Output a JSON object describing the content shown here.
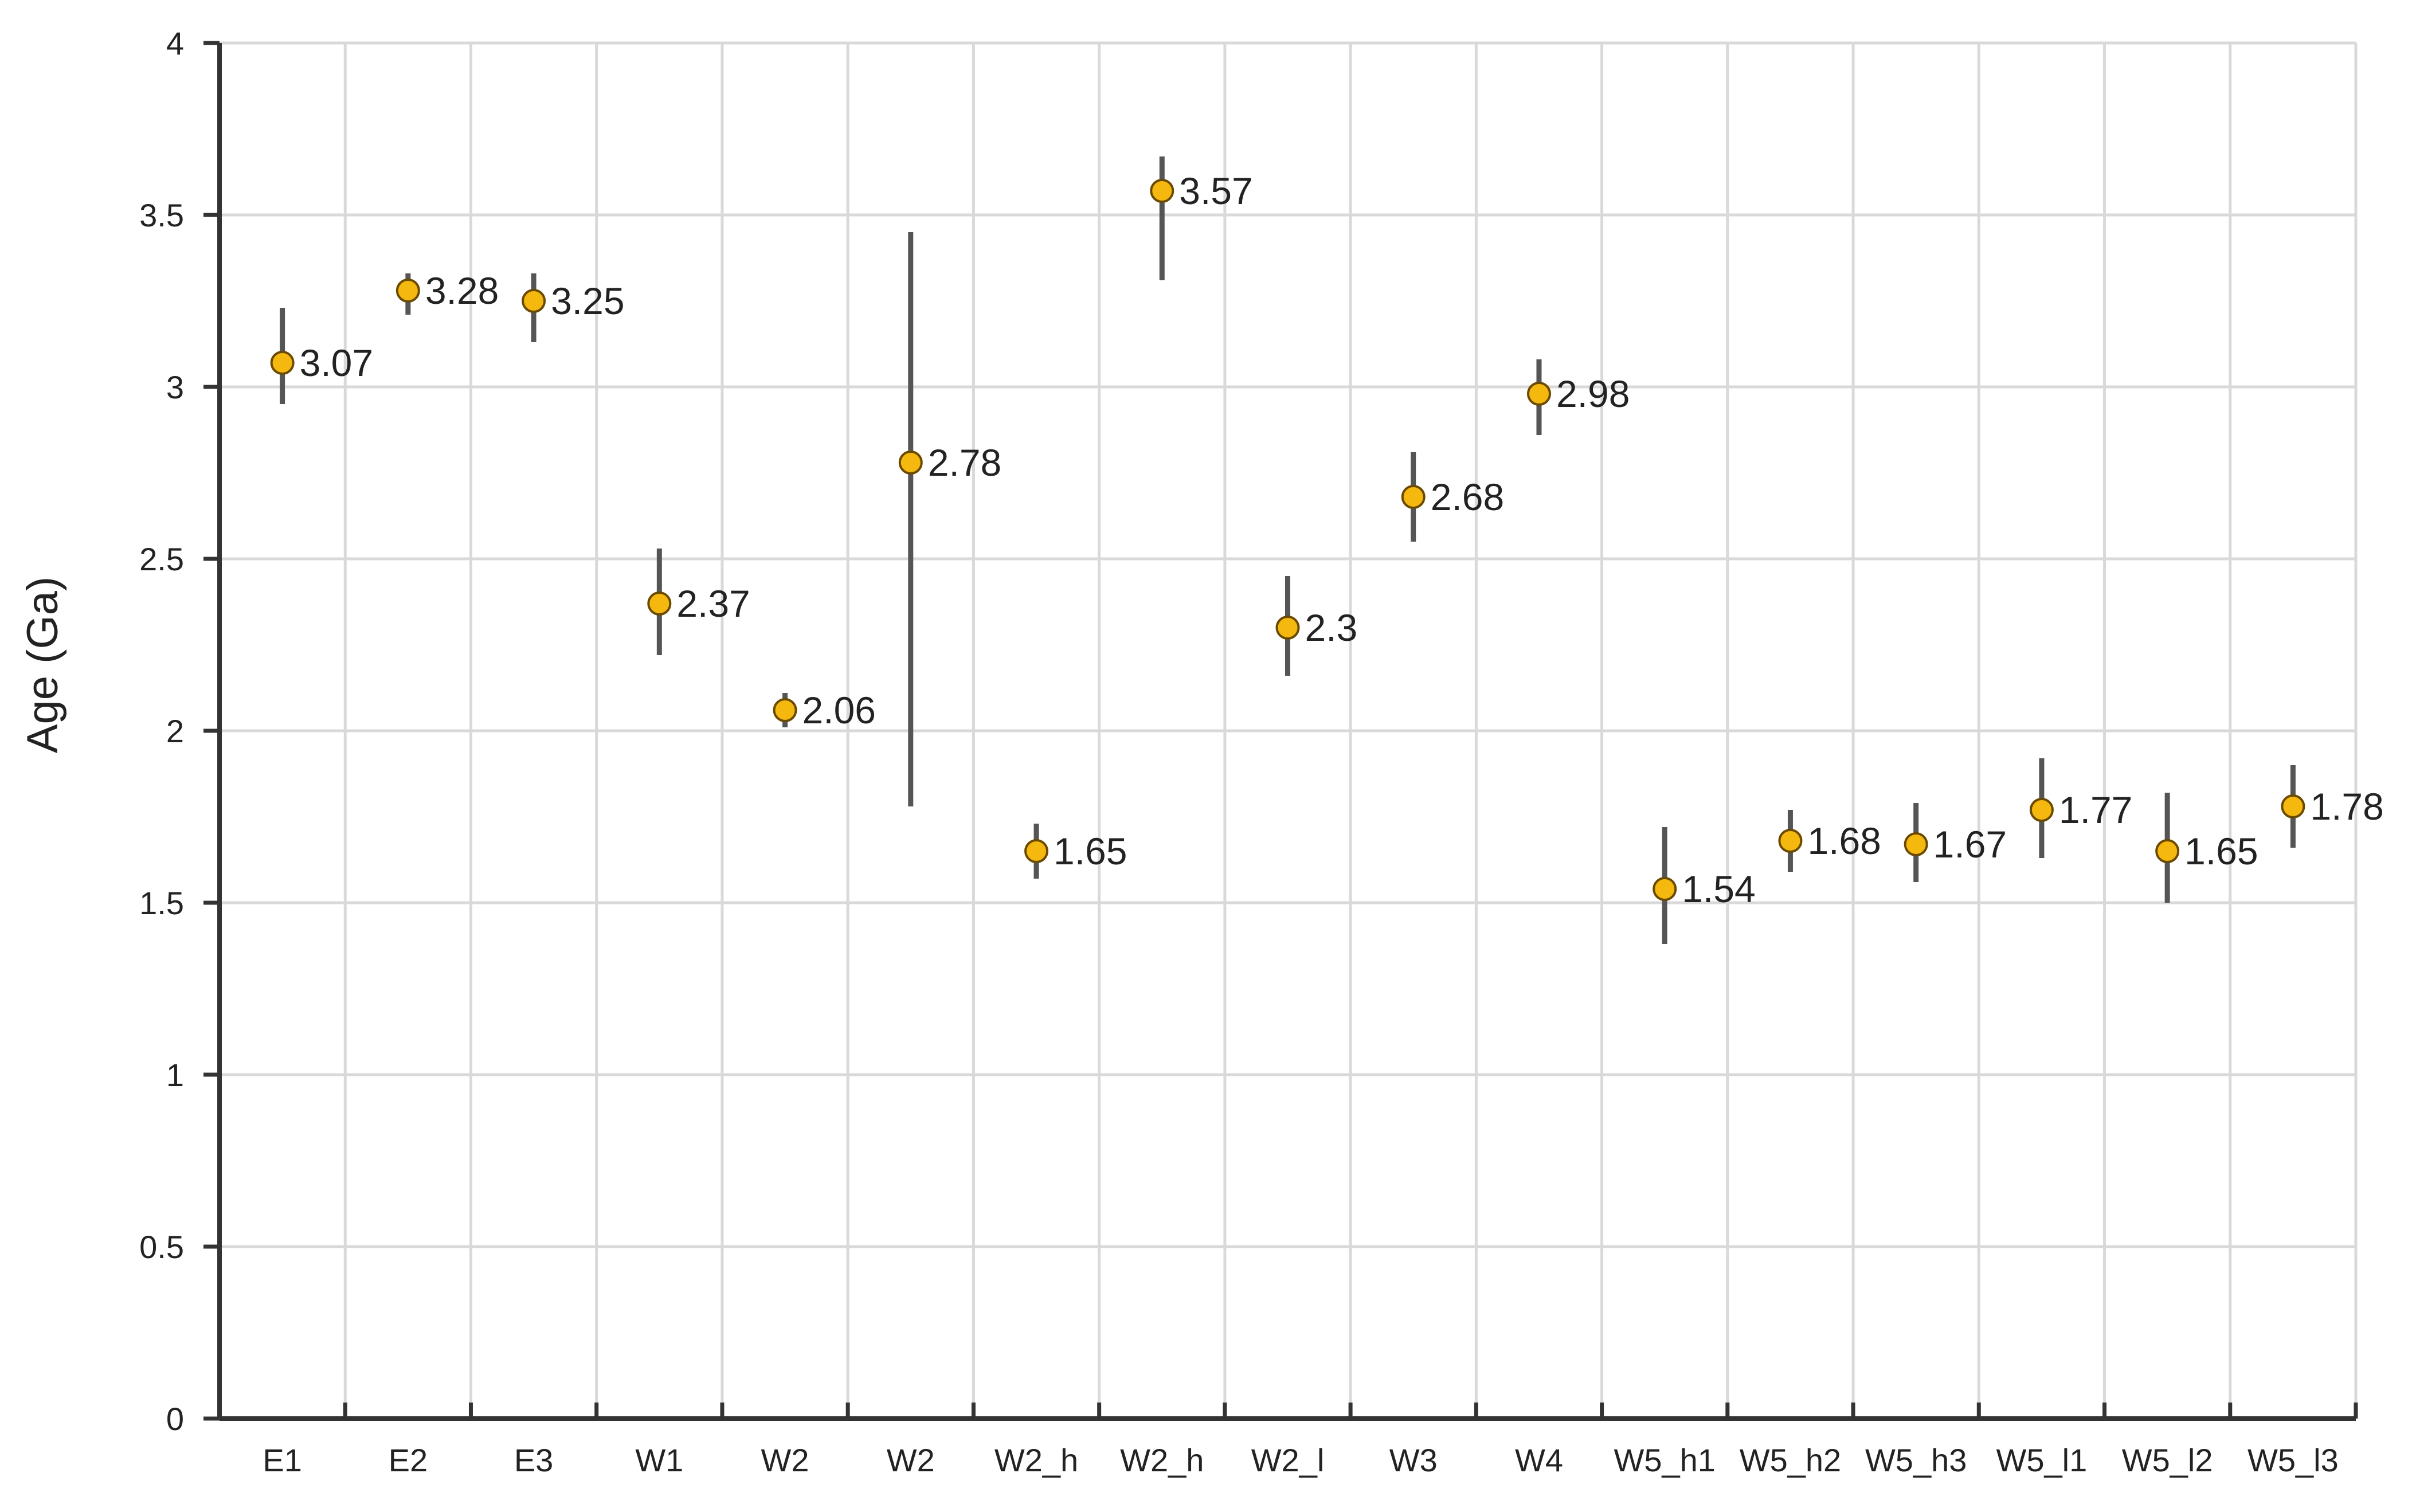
{
  "chart_data": {
    "type": "scatter",
    "title": "",
    "xlabel": "",
    "ylabel": "Age (Ga)",
    "ylim": [
      0,
      4
    ],
    "yticks": [
      "0",
      "0.5",
      "1",
      "1.5",
      "2",
      "2.5",
      "3",
      "3.5",
      "4"
    ],
    "grid": true,
    "legend": "none",
    "colors": {
      "marker_fill": "#f5b80f",
      "marker_stroke": "#6a4a00",
      "error_bar": "#555555",
      "grid": "#d9d9d9",
      "axis": "#333333"
    },
    "categories": [
      "E1",
      "E2",
      "E3",
      "W1",
      "W2",
      "W2",
      "W2_h",
      "W2_h",
      "W2_l",
      "W3",
      "W4",
      "W5_h1",
      "W5_h2",
      "W5_h3",
      "W5_l1",
      "W5_l2",
      "W5_l3"
    ],
    "values": [
      3.07,
      3.28,
      3.25,
      2.37,
      2.06,
      2.78,
      1.65,
      3.57,
      2.3,
      2.68,
      2.98,
      1.54,
      1.68,
      1.67,
      1.77,
      1.65,
      1.78
    ],
    "value_labels": [
      "3.07",
      "3.28",
      "3.25",
      "2.37",
      "2.06",
      "2.78",
      "1.65",
      "3.57",
      "2.3",
      "2.68",
      "2.98",
      "1.54",
      "1.68",
      "1.67",
      "1.77",
      "1.65",
      "1.78"
    ],
    "error_low": [
      2.95,
      3.21,
      3.13,
      2.22,
      2.01,
      1.78,
      1.57,
      3.31,
      2.16,
      2.55,
      2.86,
      1.38,
      1.59,
      1.56,
      1.63,
      1.5,
      1.66
    ],
    "error_high": [
      3.23,
      3.33,
      3.33,
      2.53,
      2.11,
      3.45,
      1.73,
      3.67,
      2.45,
      2.81,
      3.08,
      1.72,
      1.77,
      1.79,
      1.92,
      1.82,
      1.9
    ]
  }
}
